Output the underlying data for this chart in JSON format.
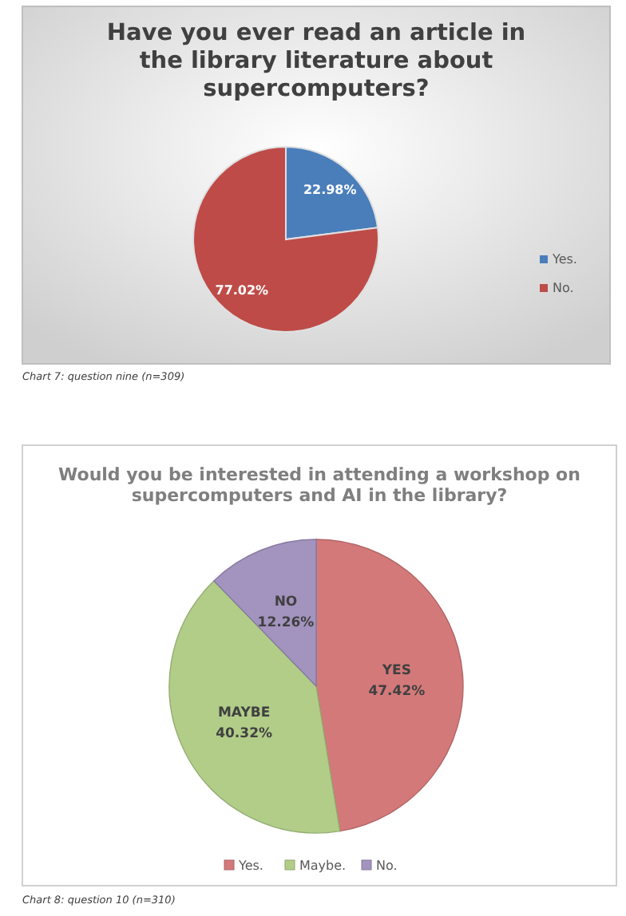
{
  "chart_data": [
    {
      "type": "pie",
      "title": "Have you ever read an article in the library literature about supercomputers?",
      "categories": [
        "Yes.",
        "No."
      ],
      "values": [
        22.98,
        77.02
      ],
      "colors": [
        "#4a7ebb",
        "#be4b48"
      ],
      "value_labels": [
        "22.98%",
        "77.02%"
      ],
      "legend": "right",
      "annotations": [
        "Chart 7: question nine (n=309)"
      ]
    },
    {
      "type": "pie",
      "title": "Would you be interested in attending a workshop on supercomputers and AI in the library?",
      "categories": [
        "Yes.",
        "Maybe.",
        "No."
      ],
      "values": [
        47.42,
        40.32,
        12.26
      ],
      "colors": [
        "#d4797a",
        "#b1cd88",
        "#a393bf"
      ],
      "value_labels": [
        "YES\n47.42%",
        "MAYBE\n40.32%",
        "NO\n12.26%"
      ],
      "legend": "bottom",
      "annotations": [
        "Chart 8: question 10 (n=310)"
      ]
    }
  ]
}
